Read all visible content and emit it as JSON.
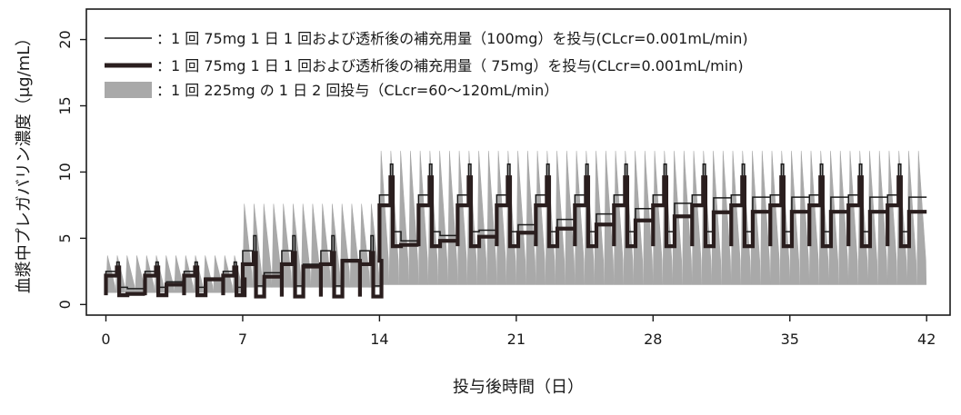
{
  "chart_data": {
    "type": "line",
    "xlabel": "投与後時間（日）",
    "ylabel": "血漿中プレガバリン濃度（μg/mL）",
    "xlim": [
      -1,
      43.2
    ],
    "ylim": [
      -0.8,
      22.3
    ],
    "xticks": [
      0,
      7,
      14,
      21,
      28,
      35,
      42
    ],
    "yticks": [
      0,
      5,
      10,
      15,
      20
    ],
    "grid": false,
    "legend_position": "top-left",
    "series": [
      {
        "name": "：1 回 75mg 1 日 1 回および透析後の補充用量（100mg）を投与(CLcr=0.001mL/min)",
        "style": "thin",
        "color": "#1a1a1a",
        "dialysis_interval_days": 2,
        "phases": [
          {
            "start": 0,
            "end": 7,
            "trough_start": 1.2,
            "trough_end": 2.0,
            "post_dialysis_low": 1.3,
            "peak": 3.2
          },
          {
            "start": 7,
            "end": 14,
            "trough_start": 2.4,
            "trough_end": 3.4,
            "post_dialysis_low": 1.4,
            "peak": 5.2
          },
          {
            "start": 14,
            "end": 42,
            "trough_start": 4.8,
            "trough_end": 8.1,
            "post_dialysis_low": 5.5,
            "peak": 10.6
          }
        ]
      },
      {
        "name": "：1 回 75mg 1 日 1 回および透析後の補充用量（ 75mg）を投与(CLcr=0.001mL/min)",
        "style": "thick",
        "color": "#2a1e1e",
        "dialysis_interval_days": 2,
        "phases": [
          {
            "start": 0,
            "end": 7,
            "trough_start": 0.8,
            "trough_end": 1.9,
            "post_dialysis_low": 0.7,
            "peak": 2.8
          },
          {
            "start": 7,
            "end": 14,
            "trough_start": 2.1,
            "trough_end": 3.3,
            "post_dialysis_low": 0.6,
            "peak": 3.9
          },
          {
            "start": 14,
            "end": 42,
            "trough_start": 4.5,
            "trough_end": 7.0,
            "post_dialysis_low": 4.4,
            "peak": 9.6
          }
        ]
      },
      {
        "name": "：1 回 225mg の 1 日 2 回投与（CLcr=60～120mL/min）",
        "style": "band",
        "color": "#a9a9a9",
        "dosing_interval_days": 0.5,
        "phases": [
          {
            "start": 0,
            "end": 7,
            "low": 0.9,
            "high": 3.7
          },
          {
            "start": 7,
            "end": 14,
            "low": 1.3,
            "high": 7.6
          },
          {
            "start": 14,
            "end": 42,
            "low": 1.5,
            "high": 11.6
          }
        ]
      }
    ]
  }
}
